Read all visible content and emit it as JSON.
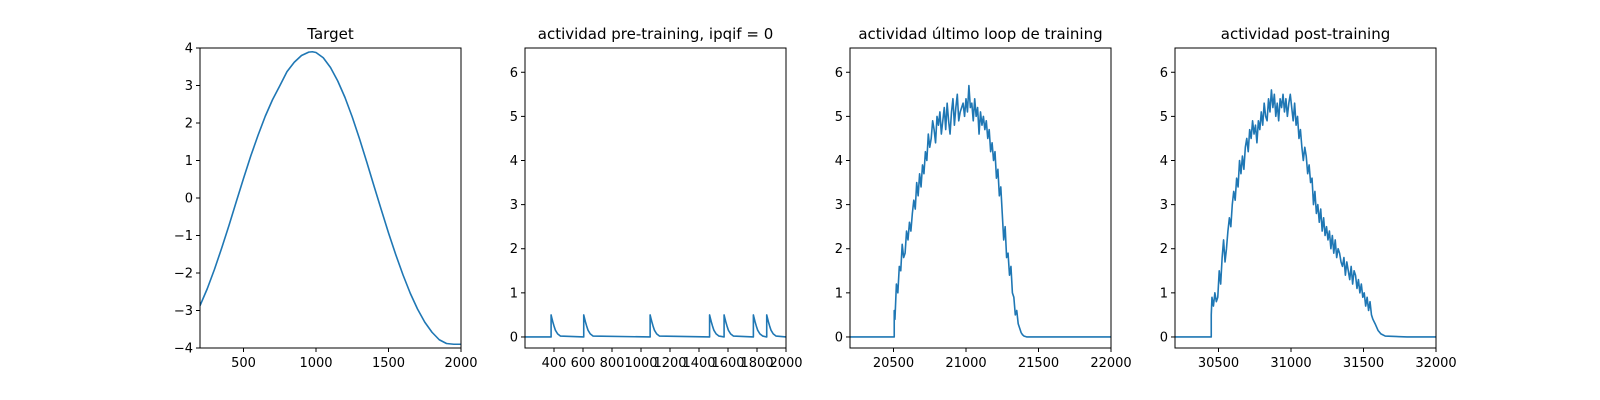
{
  "chart_data": [
    {
      "type": "line",
      "title": "Target",
      "xlim": [
        200,
        2000
      ],
      "ylim": [
        -4,
        4
      ],
      "xticks": [
        500,
        1000,
        1500,
        2000
      ],
      "yticks": [
        -4,
        -3,
        -2,
        -1,
        0,
        1,
        2,
        3,
        4
      ],
      "xtick_labels": [
        "500",
        "1000",
        "1500",
        "2000"
      ],
      "ytick_labels": [
        "−4",
        "−3",
        "−2",
        "−1",
        "0",
        "1",
        "2",
        "3",
        "4"
      ],
      "series": [
        {
          "color": "#1f77b4",
          "x": [
            200,
            250,
            300,
            350,
            400,
            450,
            500,
            550,
            600,
            650,
            700,
            750,
            800,
            850,
            900,
            950,
            975,
            1000,
            1050,
            1100,
            1150,
            1200,
            1250,
            1300,
            1350,
            1400,
            1450,
            1500,
            1550,
            1600,
            1650,
            1700,
            1750,
            1800,
            1850,
            1900,
            1950,
            2000
          ],
          "y": [
            -2.87,
            -2.42,
            -1.9,
            -1.33,
            -0.73,
            -0.1,
            0.52,
            1.12,
            1.67,
            2.18,
            2.62,
            2.99,
            3.37,
            3.62,
            3.8,
            3.89,
            3.9,
            3.88,
            3.74,
            3.48,
            3.12,
            2.68,
            2.16,
            1.58,
            0.96,
            0.32,
            -0.31,
            -0.93,
            -1.51,
            -2.05,
            -2.54,
            -2.96,
            -3.31,
            -3.58,
            -3.78,
            -3.88,
            -3.9,
            -3.9
          ]
        }
      ]
    },
    {
      "type": "line",
      "title": "actividad pre-training, ipqif = 0",
      "xlim": [
        200,
        2000
      ],
      "ylim": [
        -0.25,
        6.55
      ],
      "xticks": [
        400,
        600,
        800,
        1000,
        1200,
        1400,
        1600,
        1800,
        2000
      ],
      "yticks": [
        0,
        1,
        2,
        3,
        4,
        5,
        6
      ],
      "xtick_labels": [
        "400",
        "600",
        "800",
        "1000",
        "1200",
        "1400",
        "1600",
        "1800",
        "2000"
      ],
      "ytick_labels": [
        "0",
        "1",
        "2",
        "3",
        "4",
        "5",
        "6"
      ],
      "series": [
        {
          "color": "#1f77b4",
          "x": [
            200,
            380,
            380,
            385,
            392,
            400,
            410,
            425,
            445,
            605,
            605,
            610,
            617,
            625,
            635,
            650,
            670,
            1063,
            1063,
            1068,
            1075,
            1083,
            1093,
            1108,
            1128,
            1473,
            1473,
            1478,
            1485,
            1493,
            1503,
            1518,
            1538,
            1573,
            1573,
            1578,
            1585,
            1593,
            1603,
            1618,
            1638,
            1775,
            1775,
            1780,
            1787,
            1795,
            1805,
            1820,
            1840,
            1867,
            1867,
            1872,
            1879,
            1887,
            1897,
            1912,
            1932,
            2000
          ],
          "y": [
            0,
            0,
            0.5,
            0.43,
            0.34,
            0.25,
            0.15,
            0.07,
            0.02,
            0,
            0.5,
            0.43,
            0.34,
            0.25,
            0.15,
            0.07,
            0.02,
            0,
            0.5,
            0.43,
            0.34,
            0.25,
            0.15,
            0.07,
            0.02,
            0,
            0.5,
            0.43,
            0.34,
            0.25,
            0.15,
            0.07,
            0.02,
            0,
            0.5,
            0.43,
            0.34,
            0.25,
            0.15,
            0.07,
            0.02,
            0,
            0.5,
            0.43,
            0.34,
            0.25,
            0.15,
            0.07,
            0.02,
            0,
            0.5,
            0.43,
            0.34,
            0.25,
            0.15,
            0.07,
            0.02,
            0
          ]
        }
      ]
    },
    {
      "type": "line",
      "title": "actividad último loop de training",
      "xlim": [
        20200,
        22000
      ],
      "ylim": [
        -0.25,
        6.55
      ],
      "xticks": [
        20500,
        21000,
        21500,
        22000
      ],
      "yticks": [
        0,
        1,
        2,
        3,
        4,
        5,
        6
      ],
      "xtick_labels": [
        "20500",
        "21000",
        "21500",
        "22000"
      ],
      "ytick_labels": [
        "0",
        "1",
        "2",
        "3",
        "4",
        "5",
        "6"
      ],
      "series": [
        {
          "color": "#1f77b4",
          "x": [
            20200,
            20320,
            20440,
            20505,
            20505,
            20510,
            20520,
            20530,
            20540,
            20550,
            20560,
            20570,
            20580,
            20590,
            20600,
            20610,
            20620,
            20630,
            20640,
            20650,
            20660,
            20670,
            20680,
            20690,
            20700,
            20710,
            20720,
            20730,
            20740,
            20750,
            20760,
            20770,
            20780,
            20790,
            20800,
            20810,
            20820,
            20830,
            20840,
            20850,
            20860,
            20870,
            20880,
            20890,
            20900,
            20910,
            20920,
            20930,
            20940,
            20950,
            20960,
            20970,
            20980,
            20990,
            21000,
            21010,
            21020,
            21030,
            21040,
            21050,
            21060,
            21070,
            21080,
            21090,
            21100,
            21110,
            21120,
            21130,
            21140,
            21150,
            21160,
            21170,
            21180,
            21190,
            21200,
            21210,
            21220,
            21230,
            21240,
            21250,
            21260,
            21270,
            21280,
            21290,
            21300,
            21310,
            21320,
            21330,
            21340,
            21350,
            21360,
            21370,
            21380,
            21390,
            21400,
            21410,
            21420,
            21440,
            21460,
            21480,
            21500,
            21600,
            21800,
            22000
          ],
          "y": [
            0,
            0,
            0,
            0,
            0.6,
            0.4,
            1.2,
            1.0,
            1.6,
            1.5,
            2.1,
            1.8,
            1.9,
            2.4,
            2.2,
            2.6,
            2.4,
            2.8,
            3.1,
            2.9,
            3.5,
            3.2,
            3.7,
            3.4,
            3.9,
            3.7,
            4.2,
            4.0,
            4.6,
            4.3,
            4.5,
            4.9,
            4.7,
            4.4,
            5.0,
            4.8,
            5.1,
            4.6,
            4.9,
            5.2,
            4.7,
            5.3,
            4.9,
            4.6,
            5.1,
            5.4,
            4.8,
            5.2,
            5.5,
            4.9,
            5.1,
            5.2,
            5.3,
            5.0,
            5.4,
            5.1,
            5.7,
            5.2,
            5.3,
            4.9,
            5.4,
            5.0,
            5.2,
            4.6,
            5.1,
            4.8,
            5.0,
            4.7,
            4.9,
            4.5,
            4.7,
            4.2,
            4.4,
            4.0,
            4.2,
            3.6,
            3.8,
            3.2,
            3.4,
            2.8,
            2.2,
            2.5,
            1.8,
            1.9,
            1.4,
            1.6,
            1.0,
            0.9,
            0.5,
            0.6,
            0.3,
            0.2,
            0.1,
            0.05,
            0.02,
            0.01,
            0,
            0,
            0,
            0,
            0,
            0,
            0,
            0
          ]
        }
      ]
    },
    {
      "type": "line",
      "title": "actividad post-training",
      "xlim": [
        30200,
        32000
      ],
      "ylim": [
        -0.25,
        6.55
      ],
      "xticks": [
        30500,
        31000,
        31500,
        32000
      ],
      "yticks": [
        0,
        1,
        2,
        3,
        4,
        5,
        6
      ],
      "xtick_labels": [
        "30500",
        "31000",
        "31500",
        "32000"
      ],
      "ytick_labels": [
        "0",
        "1",
        "2",
        "3",
        "4",
        "5",
        "6"
      ],
      "series": [
        {
          "color": "#1f77b4",
          "x": [
            30200,
            30300,
            30400,
            30450,
            30450,
            30455,
            30465,
            30475,
            30485,
            30495,
            30505,
            30515,
            30525,
            30535,
            30545,
            30555,
            30565,
            30575,
            30585,
            30595,
            30605,
            30615,
            30625,
            30635,
            30645,
            30655,
            30665,
            30675,
            30685,
            30695,
            30705,
            30715,
            30725,
            30735,
            30745,
            30755,
            30765,
            30775,
            30785,
            30795,
            30805,
            30815,
            30825,
            30835,
            30845,
            30855,
            30865,
            30875,
            30885,
            30895,
            30905,
            30915,
            30925,
            30935,
            30945,
            30955,
            30965,
            30975,
            30985,
            30995,
            31005,
            31015,
            31025,
            31035,
            31045,
            31055,
            31065,
            31075,
            31085,
            31095,
            31105,
            31115,
            31125,
            31135,
            31145,
            31155,
            31165,
            31175,
            31185,
            31195,
            31205,
            31215,
            31225,
            31235,
            31245,
            31255,
            31265,
            31275,
            31285,
            31295,
            31305,
            31315,
            31325,
            31335,
            31345,
            31355,
            31365,
            31375,
            31385,
            31395,
            31405,
            31415,
            31425,
            31435,
            31445,
            31455,
            31465,
            31475,
            31485,
            31495,
            31505,
            31515,
            31525,
            31535,
            31545,
            31555,
            31565,
            31580,
            31600,
            31620,
            31650,
            31800,
            32000
          ],
          "y": [
            0,
            0,
            0,
            0,
            0.5,
            0.9,
            0.7,
            1.0,
            0.8,
            0.9,
            1.5,
            1.2,
            1.8,
            2.2,
            1.7,
            2.0,
            2.4,
            2.7,
            2.5,
            3.0,
            3.3,
            3.1,
            3.6,
            3.4,
            4.0,
            3.7,
            4.1,
            3.8,
            4.3,
            4.5,
            4.2,
            4.7,
            4.5,
            4.9,
            4.6,
            4.8,
            4.4,
            4.9,
            4.7,
            5.1,
            4.8,
            5.3,
            5.0,
            4.9,
            5.4,
            5.1,
            5.6,
            5.2,
            5.5,
            5.0,
            5.3,
            4.9,
            5.4,
            5.2,
            5.5,
            5.1,
            5.4,
            5.0,
            5.3,
            5.5,
            5.2,
            4.9,
            5.3,
            4.8,
            5.0,
            4.5,
            4.7,
            4.3,
            4.0,
            4.3,
            4.1,
            3.7,
            3.9,
            3.5,
            3.6,
            3.0,
            3.3,
            2.8,
            3.0,
            2.6,
            2.9,
            2.4,
            2.7,
            2.3,
            2.5,
            2.2,
            2.4,
            2.0,
            2.3,
            1.9,
            2.2,
            1.8,
            2.0,
            1.9,
            1.7,
            1.6,
            1.8,
            1.4,
            1.7,
            1.5,
            1.3,
            1.6,
            1.2,
            1.5,
            1.4,
            1.1,
            1.3,
            1.0,
            1.2,
            0.9,
            1.0,
            0.7,
            0.9,
            0.6,
            0.8,
            0.5,
            0.4,
            0.3,
            0.15,
            0.07,
            0.02,
            0,
            0
          ]
        }
      ]
    }
  ]
}
